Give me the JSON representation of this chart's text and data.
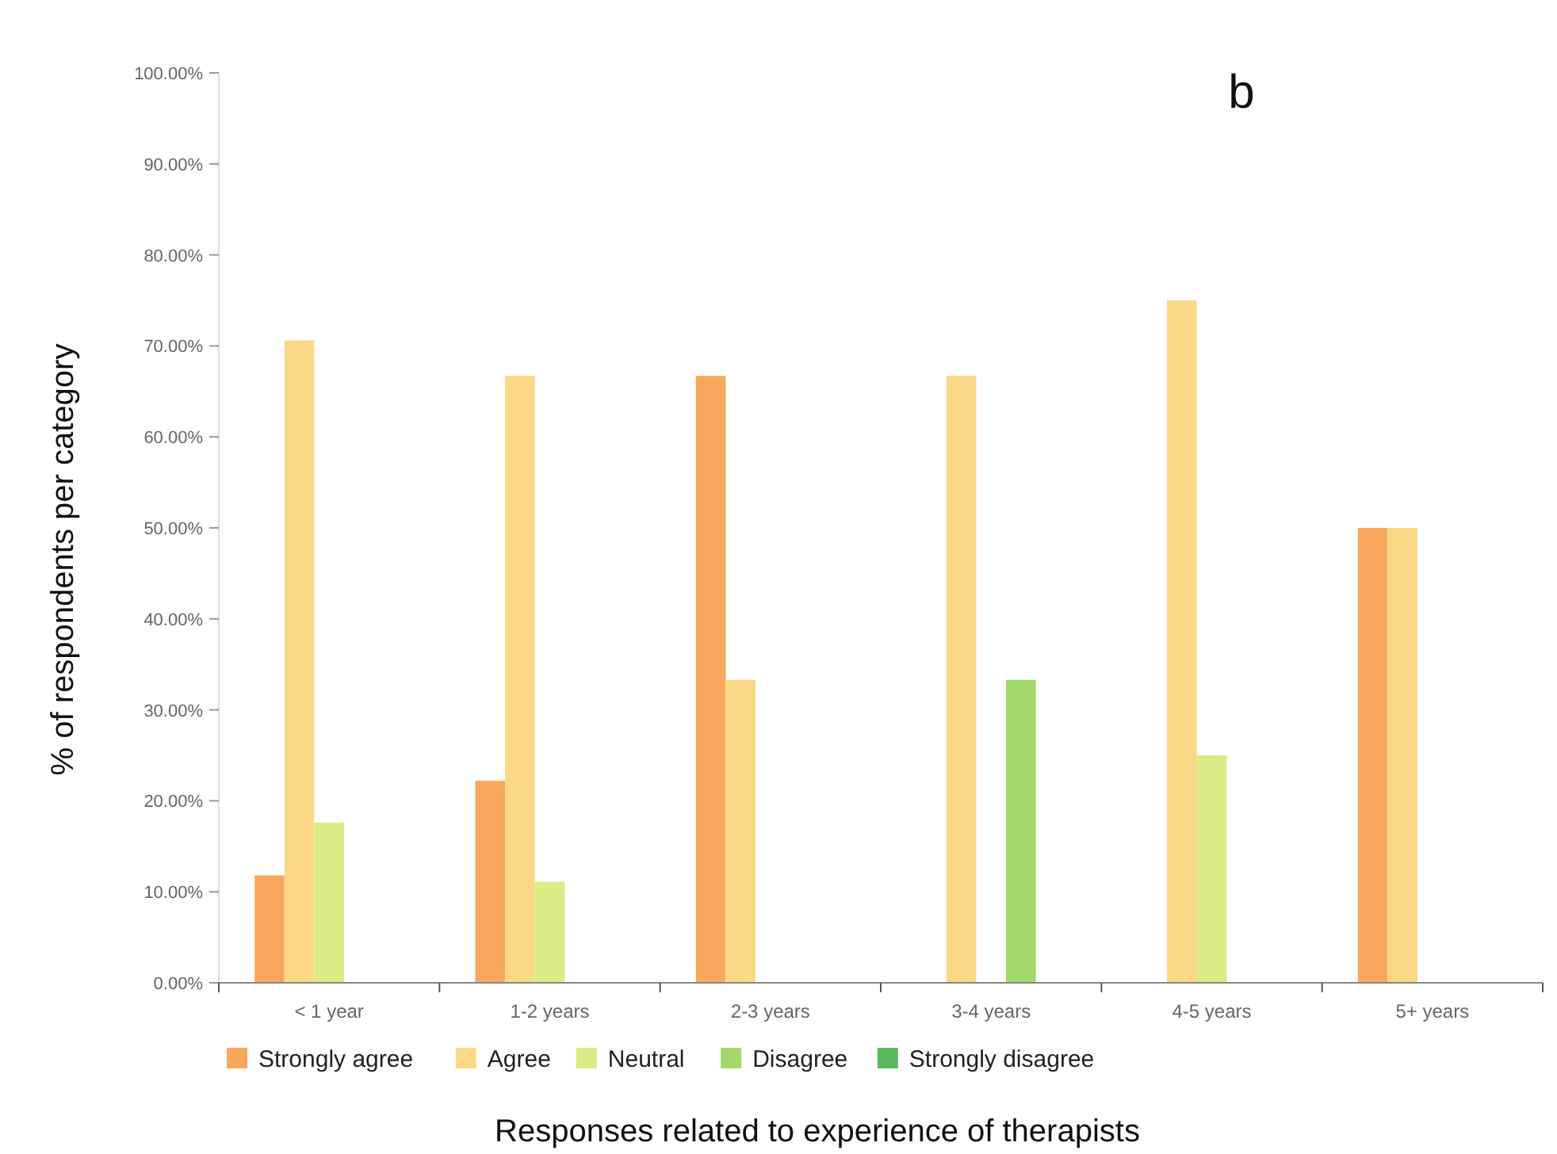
{
  "chart_data": {
    "type": "bar",
    "title": "b",
    "xlabel": "Responses related to experience of therapists",
    "ylabel": "% of  respondents per category",
    "categories": [
      "< 1 year",
      "1-2 years",
      "2-3 years",
      "3-4 years",
      "4-5 years",
      "5+ years"
    ],
    "series": [
      {
        "name": "Strongly agree",
        "color": "#f8a85c",
        "values": [
          11.8,
          22.2,
          66.7,
          0,
          0,
          50
        ]
      },
      {
        "name": "Agree",
        "color": "#fbd888",
        "values": [
          70.6,
          66.7,
          33.3,
          66.7,
          75,
          50
        ]
      },
      {
        "name": "Neutral",
        "color": "#d9ec86",
        "values": [
          17.6,
          11.1,
          0,
          0,
          25,
          0
        ]
      },
      {
        "name": "Disagree",
        "color": "#a2d86c",
        "values": [
          0,
          0,
          0,
          33.3,
          0,
          0
        ]
      },
      {
        "name": "Strongly disagree",
        "color": "#5cb85c",
        "values": [
          0,
          0,
          0,
          0,
          0,
          0
        ]
      }
    ],
    "ylim": [
      0,
      100
    ],
    "yticks": [
      {
        "value": 0,
        "label": "0.00%"
      },
      {
        "value": 10,
        "label": "10.00%"
      },
      {
        "value": 20,
        "label": "20.00%"
      },
      {
        "value": 30,
        "label": "30.00%"
      },
      {
        "value": 40,
        "label": "40.00%"
      },
      {
        "value": 50,
        "label": "50.00%"
      },
      {
        "value": 60,
        "label": "60.00%"
      },
      {
        "value": 70,
        "label": "70.00%"
      },
      {
        "value": 80,
        "label": "80.00%"
      },
      {
        "value": 90,
        "label": "90.00%"
      },
      {
        "value": 100,
        "label": "100.00%"
      }
    ],
    "grid": false,
    "legend": "bottom"
  }
}
